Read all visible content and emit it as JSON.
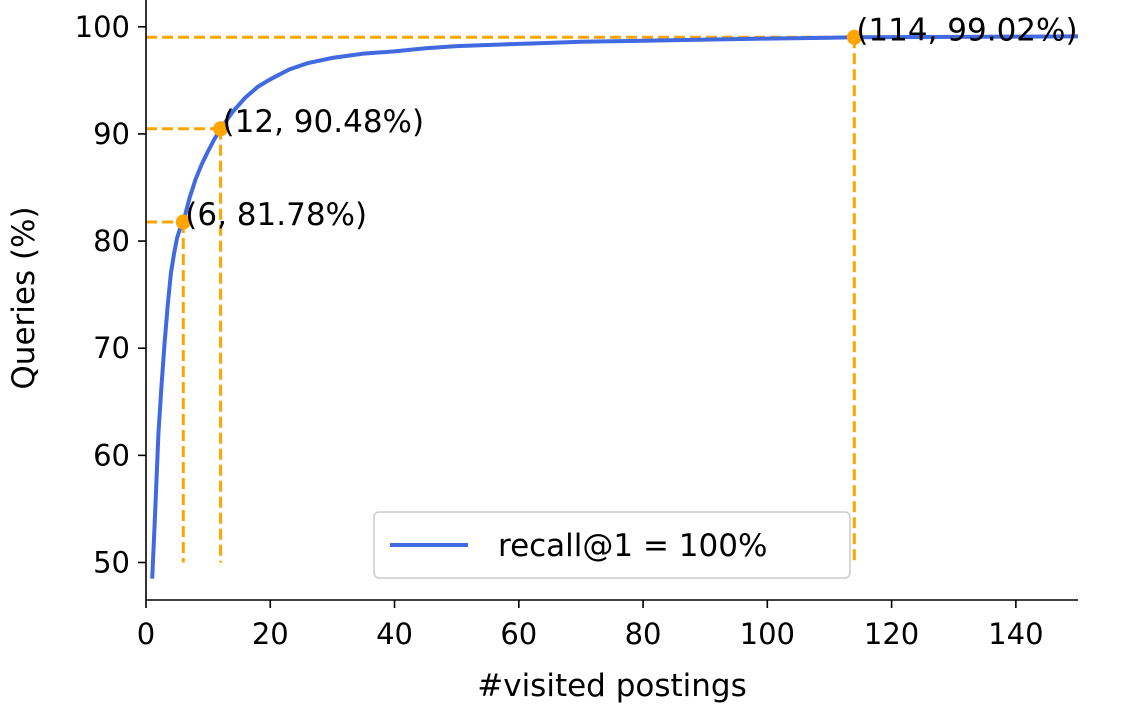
{
  "chart_data": {
    "type": "line",
    "xlabel": "#visited postings",
    "ylabel": "Queries (%)",
    "xlim": [
      0,
      150
    ],
    "ylim": [
      46.5,
      102.5
    ],
    "xticks": [
      0,
      20,
      40,
      60,
      80,
      100,
      120,
      140
    ],
    "yticks": [
      50,
      60,
      70,
      80,
      90,
      100
    ],
    "grid": false,
    "legend_position": "bottom-center",
    "series": [
      {
        "name": "recall@1 = 100%",
        "color": "#4169e1",
        "x": [
          1,
          1.5,
          2,
          2.5,
          3,
          3.5,
          4,
          4.5,
          5,
          5.5,
          6,
          7,
          8,
          9,
          10,
          11,
          12,
          14,
          16,
          18,
          20,
          23,
          26,
          30,
          35,
          40,
          45,
          50,
          55,
          60,
          65,
          70,
          80,
          90,
          100,
          110,
          114,
          120,
          130,
          140,
          150
        ],
        "y": [
          48.5,
          55,
          62,
          66.5,
          70.5,
          74,
          77,
          78.8,
          80.3,
          81.2,
          81.78,
          84,
          85.8,
          87.2,
          88.4,
          89.5,
          90.48,
          92.1,
          93.4,
          94.4,
          95.1,
          96,
          96.6,
          97.1,
          97.5,
          97.7,
          98,
          98.2,
          98.3,
          98.4,
          98.5,
          98.6,
          98.7,
          98.8,
          98.9,
          98.97,
          99.02,
          99.04,
          99.06,
          99.08,
          99.1
        ]
      }
    ],
    "highlights": [
      {
        "x": 6,
        "y": 81.78,
        "label": "(6, 81.78%)"
      },
      {
        "x": 12,
        "y": 90.48,
        "label": "(12, 90.48%)"
      },
      {
        "x": 114,
        "y": 99.02,
        "label": "(114, 99.02%)"
      }
    ],
    "highlight_color": "#ffa500",
    "dash_bottom_y": 50
  }
}
